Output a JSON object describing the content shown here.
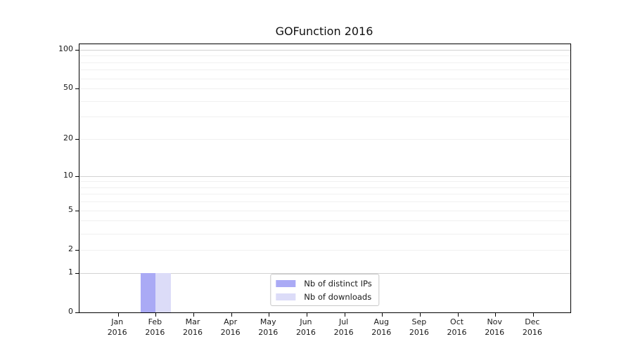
{
  "chart_data": {
    "type": "bar",
    "title": "GOFunction 2016",
    "categories": [
      "Jan",
      "Feb",
      "Mar",
      "Apr",
      "May",
      "Jun",
      "Jul",
      "Aug",
      "Sep",
      "Oct",
      "Nov",
      "Dec"
    ],
    "category_year": "2016",
    "series": [
      {
        "name": "Nb of distinct IPs",
        "color": "#aaaaf5",
        "values": [
          0,
          1,
          0,
          0,
          0,
          0,
          0,
          0,
          0,
          0,
          0,
          0
        ]
      },
      {
        "name": "Nb of downloads",
        "color": "#dcdcf8",
        "values": [
          0,
          1,
          0,
          0,
          0,
          0,
          0,
          0,
          0,
          0,
          0,
          0
        ]
      }
    ],
    "yscale": "log1p",
    "ylim": [
      0,
      110
    ],
    "y_tick_labels": [
      "0",
      "1",
      "2",
      "5",
      "10",
      "20",
      "50",
      "100"
    ],
    "y_tick_values": [
      0,
      1,
      2,
      5,
      10,
      20,
      50,
      100
    ],
    "y_major_grid_values": [
      1,
      10,
      100
    ],
    "y_minor_grid_values": [
      2,
      3,
      4,
      5,
      6,
      7,
      8,
      9,
      20,
      30,
      40,
      50,
      60,
      70,
      80,
      90
    ],
    "grid": "horizontal",
    "legend_position": "lower center",
    "colors": {
      "axis": "#000000",
      "major_grid": "#d2d2d2",
      "minor_grid": "#f0f0f0",
      "text": "#1a1a1a",
      "background": "#ffffff"
    }
  }
}
